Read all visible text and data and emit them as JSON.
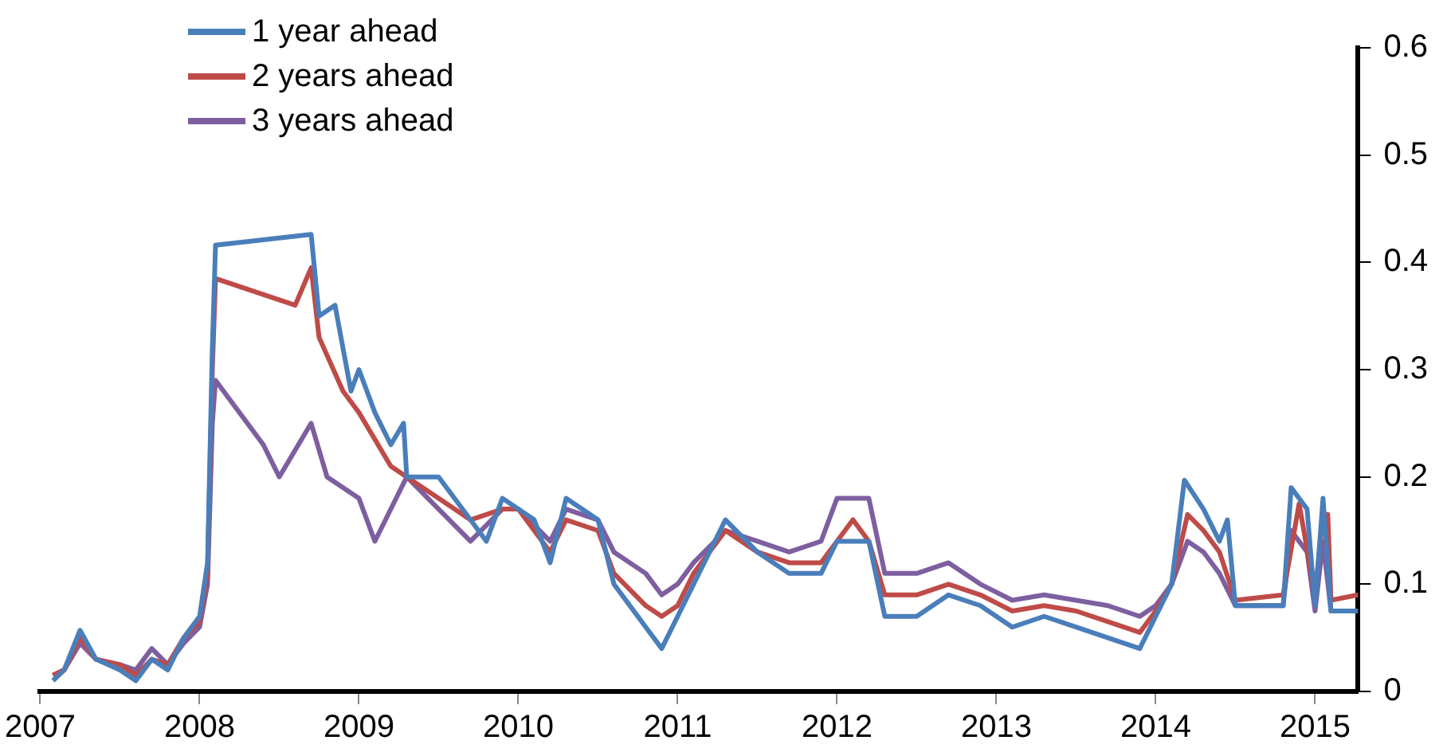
{
  "chart_data": {
    "type": "line",
    "legend": "top left",
    "marker": "none",
    "line_style": "solid",
    "grid": false,
    "xlim": [
      2007,
      2015.27
    ],
    "xticks": [
      2007,
      2008,
      2009,
      2010,
      2011,
      2012,
      2013,
      2014,
      2015
    ],
    "ylim": [
      0,
      0.6
    ],
    "yticks": [
      0,
      0.1,
      0.2,
      0.3,
      0.4,
      0.5,
      0.6
    ],
    "series": [
      {
        "name": "1 year ahead",
        "color": "#4a7ebb",
        "x": [
          2007.08,
          2007.15,
          2007.25,
          2007.35,
          2007.5,
          2007.6,
          2007.7,
          2007.8,
          2007.9,
          2008.0,
          2008.05,
          2008.08,
          2008.1,
          2008.7,
          2008.75,
          2008.85,
          2008.95,
          2009.0,
          2009.1,
          2009.2,
          2009.28,
          2009.3,
          2009.5,
          2009.7,
          2009.8,
          2009.9,
          2010.0,
          2010.1,
          2010.2,
          2010.3,
          2010.5,
          2010.6,
          2010.8,
          2010.9,
          2011.0,
          2011.1,
          2011.3,
          2011.5,
          2011.7,
          2011.9,
          2012.0,
          2012.2,
          2012.3,
          2012.5,
          2012.7,
          2012.9,
          2013.1,
          2013.3,
          2013.5,
          2013.7,
          2013.9,
          2014.0,
          2014.1,
          2014.18,
          2014.3,
          2014.4,
          2014.45,
          2014.5,
          2014.8,
          2014.85,
          2014.95,
          2015.0,
          2015.05,
          2015.1,
          2015.27
        ],
        "values": [
          0.01,
          0.02,
          0.057,
          0.03,
          0.02,
          0.01,
          0.03,
          0.02,
          0.05,
          0.07,
          0.12,
          0.32,
          0.416,
          0.426,
          0.35,
          0.36,
          0.28,
          0.3,
          0.26,
          0.23,
          0.25,
          0.2,
          0.2,
          0.16,
          0.14,
          0.18,
          0.17,
          0.16,
          0.12,
          0.18,
          0.16,
          0.1,
          0.06,
          0.04,
          0.07,
          0.1,
          0.16,
          0.13,
          0.11,
          0.11,
          0.14,
          0.14,
          0.07,
          0.07,
          0.09,
          0.08,
          0.06,
          0.07,
          0.06,
          0.05,
          0.04,
          0.07,
          0.1,
          0.197,
          0.17,
          0.14,
          0.16,
          0.08,
          0.08,
          0.19,
          0.17,
          0.08,
          0.18,
          0.075,
          0.075
        ]
      },
      {
        "name": "2 years ahead",
        "color": "#be4b48",
        "x": [
          2007.08,
          2007.15,
          2007.25,
          2007.35,
          2007.5,
          2007.6,
          2007.7,
          2007.8,
          2007.9,
          2008.0,
          2008.05,
          2008.08,
          2008.1,
          2008.6,
          2008.7,
          2008.75,
          2008.9,
          2009.0,
          2009.2,
          2009.5,
          2009.7,
          2009.9,
          2010.0,
          2010.2,
          2010.3,
          2010.5,
          2010.6,
          2010.8,
          2010.9,
          2011.0,
          2011.1,
          2011.3,
          2011.5,
          2011.7,
          2011.9,
          2012.0,
          2012.1,
          2012.2,
          2012.3,
          2012.5,
          2012.7,
          2012.9,
          2013.1,
          2013.3,
          2013.5,
          2013.7,
          2013.9,
          2014.0,
          2014.1,
          2014.2,
          2014.3,
          2014.4,
          2014.5,
          2014.8,
          2014.9,
          2015.0,
          2015.05,
          2015.08,
          2015.1,
          2015.27
        ],
        "values": [
          0.015,
          0.02,
          0.05,
          0.03,
          0.025,
          0.015,
          0.03,
          0.025,
          0.05,
          0.065,
          0.11,
          0.3,
          0.385,
          0.36,
          0.395,
          0.33,
          0.28,
          0.26,
          0.21,
          0.18,
          0.16,
          0.17,
          0.17,
          0.13,
          0.16,
          0.15,
          0.11,
          0.08,
          0.07,
          0.08,
          0.11,
          0.15,
          0.13,
          0.12,
          0.12,
          0.14,
          0.16,
          0.14,
          0.09,
          0.09,
          0.1,
          0.09,
          0.075,
          0.08,
          0.075,
          0.065,
          0.055,
          0.075,
          0.1,
          0.165,
          0.15,
          0.13,
          0.085,
          0.09,
          0.175,
          0.09,
          0.165,
          0.165,
          0.085,
          0.09
        ]
      },
      {
        "name": "3 years ahead",
        "color": "#7d5fa0",
        "x": [
          2007.08,
          2007.15,
          2007.25,
          2007.35,
          2007.5,
          2007.6,
          2007.7,
          2007.8,
          2007.9,
          2008.0,
          2008.05,
          2008.08,
          2008.1,
          2008.4,
          2008.5,
          2008.7,
          2008.8,
          2009.0,
          2009.1,
          2009.3,
          2009.5,
          2009.7,
          2009.9,
          2010.0,
          2010.2,
          2010.3,
          2010.5,
          2010.6,
          2010.8,
          2010.9,
          2011.0,
          2011.1,
          2011.3,
          2011.5,
          2011.7,
          2011.9,
          2012.0,
          2012.2,
          2012.3,
          2012.5,
          2012.7,
          2012.9,
          2013.1,
          2013.3,
          2013.5,
          2013.7,
          2013.9,
          2014.0,
          2014.1,
          2014.2,
          2014.3,
          2014.4,
          2014.5,
          2014.8,
          2014.85,
          2014.95,
          2015.0,
          2015.05,
          2015.1,
          2015.27
        ],
        "values": [
          0.015,
          0.02,
          0.045,
          0.03,
          0.025,
          0.02,
          0.04,
          0.025,
          0.045,
          0.06,
          0.1,
          0.25,
          0.29,
          0.23,
          0.2,
          0.25,
          0.2,
          0.18,
          0.14,
          0.2,
          0.17,
          0.14,
          0.17,
          0.17,
          0.14,
          0.17,
          0.16,
          0.13,
          0.11,
          0.09,
          0.1,
          0.12,
          0.15,
          0.14,
          0.13,
          0.14,
          0.18,
          0.18,
          0.11,
          0.11,
          0.12,
          0.1,
          0.085,
          0.09,
          0.085,
          0.08,
          0.07,
          0.08,
          0.1,
          0.14,
          0.13,
          0.11,
          0.08,
          0.08,
          0.15,
          0.13,
          0.075,
          0.14,
          0.075,
          0.075
        ]
      }
    ]
  }
}
